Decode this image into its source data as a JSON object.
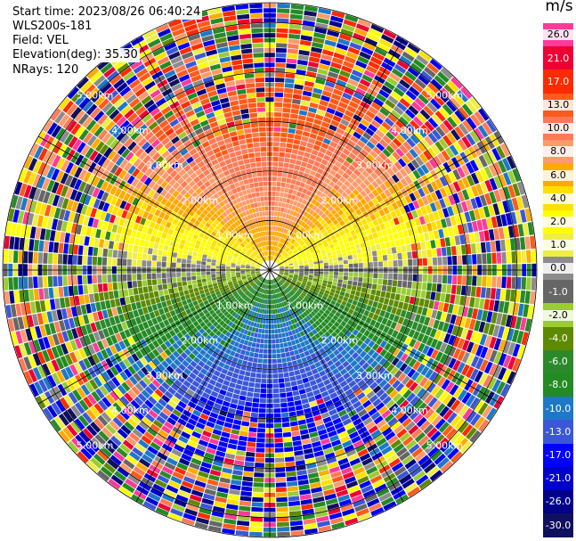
{
  "info": {
    "start_time": "Start time: 2023/08/26 06:40:24",
    "device": "WLS200s-181",
    "field": "Field: VEL",
    "elevation": "Elevation(deg): 35.30",
    "nrays": "NRays: 120"
  },
  "colorbar": {
    "unit": "m/s",
    "entries": [
      {
        "label": "26.0",
        "color": "#ff3a9a"
      },
      {
        "label": "21.0",
        "color": "#ee0033"
      },
      {
        "label": "17.0",
        "color": "#ff2a00"
      },
      {
        "label": "13.0",
        "color": "#ff5a1a"
      },
      {
        "label": "10.0",
        "color": "#ff7a55"
      },
      {
        "label": "8.0",
        "color": "#ff9a6a"
      },
      {
        "label": "6.0",
        "color": "#ffaa00"
      },
      {
        "label": "4.0",
        "color": "#ffe000"
      },
      {
        "label": "2.0",
        "color": "#ffff00"
      },
      {
        "label": "1.0",
        "color": "#eeee44"
      },
      {
        "label": "0.0",
        "color": "#8c8c8c"
      },
      {
        "label": "-1.0",
        "color": "#666666"
      },
      {
        "label": "-2.0",
        "color": "#9bcc33"
      },
      {
        "label": "-4.0",
        "color": "#5e8a00"
      },
      {
        "label": "-6.0",
        "color": "#2a8a2a"
      },
      {
        "label": "-8.0",
        "color": "#228b22"
      },
      {
        "label": "-10.0",
        "color": "#1e78c8"
      },
      {
        "label": "-13.0",
        "color": "#3b57d8"
      },
      {
        "label": "-17.0",
        "color": "#0000ff"
      },
      {
        "label": "-21.0",
        "color": "#0000cd"
      },
      {
        "label": "-26.0",
        "color": "#000088"
      },
      {
        "label": "-30.0",
        "color": "#101060"
      }
    ]
  },
  "range_rings": [
    {
      "label": "1.00km",
      "km": 1
    },
    {
      "label": "2.00km",
      "km": 2
    },
    {
      "label": "3.00km",
      "km": 3
    },
    {
      "label": "4.00km",
      "km": 4
    },
    {
      "label": "5.00km",
      "km": 5
    }
  ],
  "max_range_km": 5.4
}
